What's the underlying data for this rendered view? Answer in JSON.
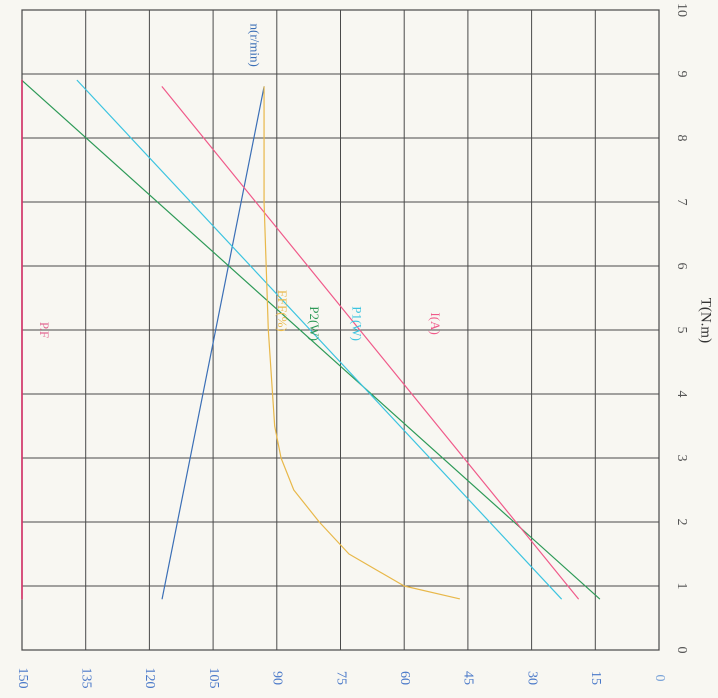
{
  "chart_data": {
    "type": "line",
    "orientation": "rotated-90-clockwise",
    "title": "",
    "xlabel": "T(N.m)",
    "ylabel": "",
    "xlim": [
      0,
      10
    ],
    "ylim": [
      0,
      150
    ],
    "x_ticks": [
      "0",
      "1",
      "2",
      "3",
      "4",
      "5",
      "6",
      "7",
      "8",
      "9",
      "10"
    ],
    "y_ticks": [
      "0",
      "15",
      "30",
      "45",
      "60",
      "75",
      "90",
      "105",
      "120",
      "135",
      "150"
    ],
    "grid": true,
    "series": [
      {
        "name": "n(r/min)",
        "color": "#3b6fb6",
        "x": [
          0.8,
          8.8
        ],
        "y": [
          117,
          93
        ]
      },
      {
        "name": "P2(W)",
        "color": "#2e9a58",
        "x": [
          0.8,
          8.9
        ],
        "y": [
          14,
          150
        ]
      },
      {
        "name": "P1(W)",
        "color": "#3cc4e0",
        "x": [
          0.8,
          8.9
        ],
        "y": [
          23,
          137
        ]
      },
      {
        "name": "I(A)",
        "color": "#f05a8a",
        "x": [
          0.8,
          8.8
        ],
        "y": [
          19,
          117
        ]
      },
      {
        "name": "EFF(%)",
        "color": "#e8b84a",
        "x": [
          0.8,
          1.0,
          1.5,
          2.0,
          2.5,
          3.0,
          3.5,
          4.0,
          5.0,
          6.0,
          7.0,
          8.0,
          8.8
        ],
        "y": [
          47,
          60,
          73,
          80,
          86,
          89,
          90.5,
          91,
          92,
          92.5,
          93,
          93,
          93
        ]
      },
      {
        "name": "P.F",
        "color": "#d8336a",
        "x": [
          0.8,
          8.9
        ],
        "y": [
          150,
          150
        ]
      }
    ]
  }
}
